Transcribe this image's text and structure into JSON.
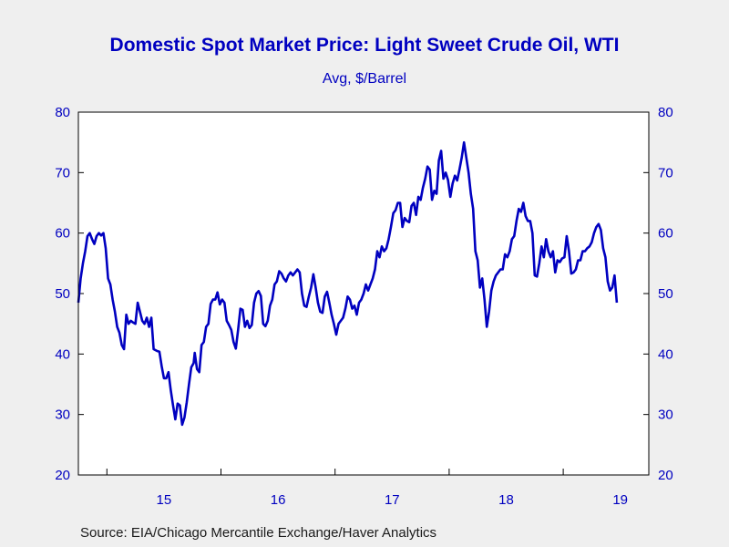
{
  "colors": {
    "title": "#0000c0",
    "line": "#0000c0",
    "axis_text": "#0000c0",
    "frame": "#000000",
    "background": "#efefef",
    "plot_bg": "#ffffff"
  },
  "chart_data": {
    "type": "line",
    "title": "Domestic Spot Market Price: Light Sweet Crude Oil, WTI",
    "subtitle": "Avg, $/Barrel",
    "source": "Source:  EIA/Chicago Mercantile Exchange/Haver Analytics",
    "ylim": [
      20,
      80
    ],
    "yticks": [
      20,
      30,
      40,
      50,
      60,
      70,
      80
    ],
    "dual_y_axis": true,
    "xlim": [
      2014.75,
      2019.75
    ],
    "year_labels": [
      {
        "label": "15",
        "x": 2015.5
      },
      {
        "label": "16",
        "x": 2016.5
      },
      {
        "label": "17",
        "x": 2017.5
      },
      {
        "label": "18",
        "x": 2018.5
      },
      {
        "label": "19",
        "x": 2019.5
      }
    ],
    "year_ticks": [
      2015,
      2016,
      2017,
      2018,
      2019
    ],
    "grid": false,
    "series": [
      {
        "values": [
          [
            2014.75,
            48.5
          ],
          [
            2014.77,
            52.5
          ],
          [
            2014.79,
            55
          ],
          [
            2014.81,
            57
          ],
          [
            2014.83,
            59.5
          ],
          [
            2014.85,
            60
          ],
          [
            2014.87,
            59
          ],
          [
            2014.89,
            58.2
          ],
          [
            2014.91,
            59.5
          ],
          [
            2014.93,
            60
          ],
          [
            2014.95,
            59.6
          ],
          [
            2014.97,
            60
          ],
          [
            2014.99,
            57.5
          ],
          [
            2015.01,
            52.5
          ],
          [
            2015.03,
            51.5
          ],
          [
            2015.05,
            49
          ],
          [
            2015.07,
            47
          ],
          [
            2015.09,
            44.5
          ],
          [
            2015.11,
            43.5
          ],
          [
            2015.13,
            41.5
          ],
          [
            2015.15,
            40.8
          ],
          [
            2015.17,
            46.5
          ],
          [
            2015.19,
            45
          ],
          [
            2015.21,
            45.5
          ],
          [
            2015.23,
            45.2
          ],
          [
            2015.25,
            45
          ],
          [
            2015.27,
            48.5
          ],
          [
            2015.29,
            47
          ],
          [
            2015.31,
            45.5
          ],
          [
            2015.33,
            45
          ],
          [
            2015.35,
            46
          ],
          [
            2015.37,
            44.5
          ],
          [
            2015.39,
            46
          ],
          [
            2015.41,
            40.8
          ],
          [
            2015.44,
            40.5
          ],
          [
            2015.46,
            40.4
          ],
          [
            2015.48,
            38
          ],
          [
            2015.5,
            36
          ],
          [
            2015.52,
            36
          ],
          [
            2015.54,
            37
          ],
          [
            2015.56,
            34
          ],
          [
            2015.58,
            31.5
          ],
          [
            2015.6,
            29.2
          ],
          [
            2015.62,
            31.8
          ],
          [
            2015.64,
            31.5
          ],
          [
            2015.66,
            28.3
          ],
          [
            2015.68,
            29.5
          ],
          [
            2015.7,
            32
          ],
          [
            2015.72,
            35
          ],
          [
            2015.74,
            37.8
          ],
          [
            2015.76,
            38.5
          ],
          [
            2015.77,
            40.2
          ],
          [
            2015.79,
            37.5
          ],
          [
            2015.81,
            37
          ],
          [
            2015.83,
            41.5
          ],
          [
            2015.85,
            42
          ],
          [
            2015.87,
            44.5
          ],
          [
            2015.89,
            45
          ],
          [
            2015.91,
            48.3
          ],
          [
            2015.93,
            49
          ],
          [
            2015.95,
            49
          ],
          [
            2015.97,
            50.2
          ],
          [
            2015.99,
            48.2
          ],
          [
            2016.01,
            49
          ],
          [
            2016.03,
            48.5
          ],
          [
            2016.05,
            45.5
          ],
          [
            2016.07,
            44.8
          ],
          [
            2016.09,
            44
          ],
          [
            2016.11,
            42
          ],
          [
            2016.13,
            40.9
          ],
          [
            2016.15,
            44
          ],
          [
            2016.17,
            47.5
          ],
          [
            2016.19,
            47.3
          ],
          [
            2016.21,
            44.5
          ],
          [
            2016.23,
            45.5
          ],
          [
            2016.25,
            44.3
          ],
          [
            2016.27,
            44.8
          ],
          [
            2016.29,
            48.5
          ],
          [
            2016.31,
            50
          ],
          [
            2016.33,
            50.4
          ],
          [
            2016.35,
            49.6
          ],
          [
            2016.37,
            45
          ],
          [
            2016.39,
            44.6
          ],
          [
            2016.41,
            45.5
          ],
          [
            2016.43,
            48
          ],
          [
            2016.45,
            49
          ],
          [
            2016.47,
            51.5
          ],
          [
            2016.49,
            52
          ],
          [
            2016.51,
            53.7
          ],
          [
            2016.53,
            53.3
          ],
          [
            2016.55,
            52.5
          ],
          [
            2016.57,
            52
          ],
          [
            2016.59,
            53
          ],
          [
            2016.61,
            53.5
          ],
          [
            2016.63,
            53
          ],
          [
            2016.65,
            53.5
          ],
          [
            2016.67,
            54
          ],
          [
            2016.69,
            53.5
          ],
          [
            2016.71,
            50
          ],
          [
            2016.73,
            48
          ],
          [
            2016.75,
            47.8
          ],
          [
            2016.77,
            49.5
          ],
          [
            2016.79,
            51
          ],
          [
            2016.81,
            53.2
          ],
          [
            2016.83,
            51
          ],
          [
            2016.85,
            48.5
          ],
          [
            2016.87,
            47
          ],
          [
            2016.89,
            46.8
          ],
          [
            2016.91,
            49.5
          ],
          [
            2016.93,
            50.3
          ],
          [
            2016.95,
            48.5
          ],
          [
            2016.97,
            46.5
          ],
          [
            2016.99,
            45
          ],
          [
            2017.01,
            43.2
          ],
          [
            2017.03,
            45
          ],
          [
            2017.05,
            45.5
          ],
          [
            2017.07,
            46
          ],
          [
            2017.09,
            47.5
          ],
          [
            2017.11,
            49.5
          ],
          [
            2017.13,
            49
          ],
          [
            2017.15,
            47.5
          ],
          [
            2017.17,
            48
          ],
          [
            2017.19,
            46.5
          ],
          [
            2017.21,
            48.5
          ],
          [
            2017.23,
            49
          ],
          [
            2017.25,
            50
          ],
          [
            2017.27,
            51.5
          ],
          [
            2017.29,
            50.5
          ],
          [
            2017.31,
            51.5
          ],
          [
            2017.33,
            52.5
          ],
          [
            2017.35,
            54
          ],
          [
            2017.37,
            57
          ],
          [
            2017.39,
            56
          ],
          [
            2017.41,
            57.8
          ],
          [
            2017.43,
            57
          ],
          [
            2017.45,
            57.5
          ],
          [
            2017.47,
            59
          ],
          [
            2017.49,
            61
          ],
          [
            2017.51,
            63.3
          ],
          [
            2017.53,
            63.8
          ],
          [
            2017.55,
            65
          ],
          [
            2017.57,
            65
          ],
          [
            2017.59,
            61
          ],
          [
            2017.61,
            62.5
          ],
          [
            2017.63,
            62
          ],
          [
            2017.65,
            61.8
          ],
          [
            2017.67,
            64.5
          ],
          [
            2017.69,
            65
          ],
          [
            2017.71,
            63
          ],
          [
            2017.73,
            66
          ],
          [
            2017.75,
            65.5
          ],
          [
            2017.77,
            67.5
          ],
          [
            2017.79,
            69
          ],
          [
            2017.81,
            71
          ],
          [
            2017.83,
            70.5
          ],
          [
            2017.85,
            65.5
          ],
          [
            2017.87,
            67
          ],
          [
            2017.89,
            66.5
          ],
          [
            2017.91,
            72
          ],
          [
            2017.93,
            73.6
          ],
          [
            2017.95,
            69
          ],
          [
            2017.97,
            70
          ],
          [
            2017.99,
            68.8
          ],
          [
            2018.01,
            66
          ],
          [
            2018.03,
            68.2
          ],
          [
            2018.05,
            69.5
          ],
          [
            2018.07,
            68.7
          ],
          [
            2018.09,
            70.5
          ],
          [
            2018.11,
            72.5
          ],
          [
            2018.13,
            75
          ],
          [
            2018.15,
            72.5
          ],
          [
            2018.17,
            70
          ],
          [
            2018.19,
            66.5
          ],
          [
            2018.21,
            64
          ],
          [
            2018.23,
            57
          ],
          [
            2018.25,
            55.5
          ],
          [
            2018.27,
            51
          ],
          [
            2018.29,
            52.5
          ],
          [
            2018.31,
            49
          ],
          [
            2018.33,
            44.5
          ],
          [
            2018.35,
            47
          ],
          [
            2018.37,
            50.5
          ],
          [
            2018.39,
            52
          ],
          [
            2018.41,
            53
          ],
          [
            2018.43,
            53.5
          ],
          [
            2018.45,
            54
          ],
          [
            2018.47,
            54
          ],
          [
            2018.49,
            56.5
          ],
          [
            2018.51,
            56
          ],
          [
            2018.53,
            57
          ],
          [
            2018.55,
            59
          ],
          [
            2018.57,
            59.5
          ],
          [
            2018.59,
            62
          ],
          [
            2018.61,
            64
          ],
          [
            2018.63,
            63.5
          ],
          [
            2018.65,
            65
          ],
          [
            2018.67,
            62.8
          ],
          [
            2018.69,
            62
          ],
          [
            2018.71,
            62
          ],
          [
            2018.73,
            60
          ],
          [
            2018.75,
            53
          ],
          [
            2018.77,
            52.8
          ],
          [
            2018.79,
            55
          ],
          [
            2018.81,
            57.8
          ],
          [
            2018.83,
            56
          ],
          [
            2018.85,
            59
          ],
          [
            2018.87,
            57
          ],
          [
            2018.89,
            56
          ],
          [
            2018.91,
            57
          ],
          [
            2018.93,
            53.5
          ],
          [
            2018.95,
            55.5
          ],
          [
            2018.97,
            55.2
          ],
          [
            2018.99,
            55.8
          ],
          [
            2019.01,
            56
          ],
          [
            2019.03,
            59.5
          ],
          [
            2019.05,
            57
          ],
          [
            2019.07,
            53.3
          ],
          [
            2019.09,
            53.5
          ],
          [
            2019.11,
            54
          ],
          [
            2019.13,
            55.5
          ],
          [
            2019.15,
            55.5
          ],
          [
            2019.17,
            57
          ],
          [
            2019.19,
            57
          ],
          [
            2019.21,
            57.5
          ],
          [
            2019.23,
            57.8
          ],
          [
            2019.25,
            58.5
          ],
          [
            2019.27,
            60
          ],
          [
            2019.29,
            61
          ],
          [
            2019.31,
            61.5
          ],
          [
            2019.33,
            60.5
          ],
          [
            2019.35,
            57.5
          ],
          [
            2019.37,
            56
          ],
          [
            2019.39,
            52
          ],
          [
            2019.41,
            50.5
          ],
          [
            2019.43,
            51
          ],
          [
            2019.45,
            53
          ],
          [
            2019.47,
            48.5
          ]
        ]
      }
    ]
  }
}
